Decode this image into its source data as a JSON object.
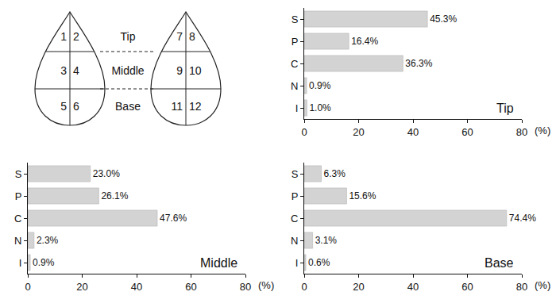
{
  "diagram": {
    "rows": [
      "Tip",
      "Middle",
      "Base"
    ],
    "left_leaf": [
      [
        "1",
        "2"
      ],
      [
        "3",
        "4"
      ],
      [
        "5",
        "6"
      ]
    ],
    "right_leaf": [
      [
        "7",
        "8"
      ],
      [
        "9",
        "10"
      ],
      [
        "11",
        "12"
      ]
    ]
  },
  "chart_data": [
    {
      "type": "bar",
      "orientation": "horizontal",
      "label": "Tip",
      "categories": [
        "S",
        "P",
        "C",
        "N",
        "I"
      ],
      "values": [
        45.3,
        16.4,
        36.3,
        0.9,
        1.0
      ],
      "value_labels": [
        "45.3%",
        "16.4%",
        "36.3%",
        "0.9%",
        "1.0%"
      ],
      "data_labels": true,
      "color": "#d3d3d3",
      "grid": false,
      "xlabel": "(%)",
      "xlim": [
        0,
        80
      ],
      "xticks": [
        0,
        20,
        40,
        60,
        80
      ]
    },
    {
      "type": "bar",
      "orientation": "horizontal",
      "label": "Middle",
      "categories": [
        "S",
        "P",
        "C",
        "N",
        "I"
      ],
      "values": [
        23.0,
        26.1,
        47.6,
        2.3,
        0.9
      ],
      "value_labels": [
        "23.0%",
        "26.1%",
        "47.6%",
        "2.3%",
        "0.9%"
      ],
      "data_labels": true,
      "color": "#d3d3d3",
      "grid": false,
      "xlabel": "(%)",
      "xlim": [
        0,
        80
      ],
      "xticks": [
        0,
        20,
        40,
        60,
        80
      ]
    },
    {
      "type": "bar",
      "orientation": "horizontal",
      "label": "Base",
      "categories": [
        "S",
        "P",
        "C",
        "N",
        "I"
      ],
      "values": [
        6.3,
        15.6,
        74.4,
        3.1,
        0.6
      ],
      "value_labels": [
        "6.3%",
        "15.6%",
        "74.4%",
        "3.1%",
        "0.6%"
      ],
      "data_labels": true,
      "color": "#d3d3d3",
      "grid": false,
      "xlabel": "(%)",
      "xlim": [
        0,
        80
      ],
      "xticks": [
        0,
        20,
        40,
        60,
        80
      ]
    }
  ]
}
